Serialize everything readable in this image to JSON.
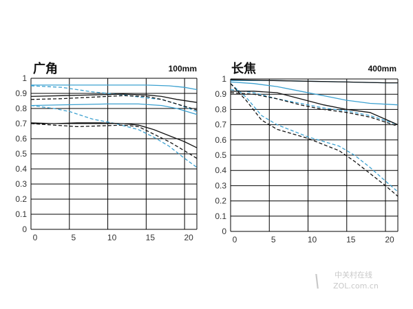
{
  "chart_data": [
    {
      "type": "line",
      "title": "广角",
      "subtitle": "100mm",
      "xlim": [
        0,
        21.6
      ],
      "ylim": [
        0,
        1
      ],
      "x_ticks": [
        "0",
        "5",
        "10",
        "15",
        "20"
      ],
      "y_ticks": [
        "0",
        "0.1",
        "0.2",
        "0.3",
        "0.4",
        "0.5",
        "0.6",
        "0.7",
        "0.8",
        "0.9",
        "1"
      ],
      "grid": true,
      "series": [
        {
          "color": "#3aa0d0",
          "dash": "solid",
          "x": [
            0,
            5,
            10,
            15,
            18,
            20,
            21.6
          ],
          "y": [
            0.955,
            0.955,
            0.955,
            0.955,
            0.95,
            0.94,
            0.925
          ]
        },
        {
          "color": "#3aa0d0",
          "dash": "dashed",
          "x": [
            0,
            4,
            8,
            12,
            15,
            17,
            19,
            21.6
          ],
          "y": [
            0.95,
            0.94,
            0.91,
            0.89,
            0.87,
            0.86,
            0.83,
            0.78
          ]
        },
        {
          "color": "#3aa0d0",
          "dash": "solid",
          "x": [
            0,
            5,
            10,
            14,
            17,
            19,
            21.6
          ],
          "y": [
            0.82,
            0.825,
            0.83,
            0.83,
            0.82,
            0.8,
            0.76
          ]
        },
        {
          "color": "#3aa0d0",
          "dash": "dashed",
          "x": [
            0,
            3,
            5,
            8,
            11,
            14,
            16,
            18,
            20,
            21.6
          ],
          "y": [
            0.82,
            0.8,
            0.78,
            0.73,
            0.7,
            0.66,
            0.61,
            0.55,
            0.47,
            0.41
          ]
        },
        {
          "color": "#111111",
          "dash": "solid",
          "x": [
            0,
            4,
            8,
            12,
            15,
            17,
            19,
            21.6
          ],
          "y": [
            0.88,
            0.885,
            0.89,
            0.895,
            0.89,
            0.88,
            0.86,
            0.84
          ]
        },
        {
          "color": "#111111",
          "dash": "dashed",
          "x": [
            0,
            4,
            8,
            12,
            15,
            17,
            19,
            21.6
          ],
          "y": [
            0.86,
            0.865,
            0.875,
            0.885,
            0.88,
            0.86,
            0.83,
            0.79
          ]
        },
        {
          "color": "#111111",
          "dash": "solid",
          "x": [
            0,
            3,
            6,
            9,
            12,
            14,
            16,
            18,
            20,
            21.6
          ],
          "y": [
            0.705,
            0.7,
            0.705,
            0.705,
            0.7,
            0.69,
            0.66,
            0.62,
            0.58,
            0.54
          ]
        },
        {
          "color": "#111111",
          "dash": "dashed",
          "x": [
            0,
            3,
            6,
            9,
            12,
            14,
            16,
            18,
            20,
            21.6
          ],
          "y": [
            0.7,
            0.69,
            0.68,
            0.685,
            0.69,
            0.68,
            0.63,
            0.58,
            0.52,
            0.47
          ]
        }
      ]
    },
    {
      "type": "line",
      "title": "长焦",
      "subtitle": "400mm",
      "xlim": [
        0,
        21.6
      ],
      "ylim": [
        0,
        1
      ],
      "x_ticks": [
        "0",
        "5",
        "10",
        "15",
        "20"
      ],
      "y_ticks": [
        "0",
        "0.1",
        "0.2",
        "0.3",
        "0.4",
        "0.5",
        "0.6",
        "0.7",
        "0.8",
        "0.9",
        "1"
      ],
      "grid": true,
      "series": [
        {
          "color": "#3aa0d0",
          "dash": "solid",
          "x": [
            0,
            5,
            10,
            15,
            20,
            21.6
          ],
          "y": [
            0.99,
            0.99,
            0.985,
            0.98,
            0.975,
            0.975
          ]
        },
        {
          "color": "#3aa0d0",
          "dash": "solid",
          "x": [
            0,
            3,
            6,
            9,
            12,
            15,
            18,
            21.6
          ],
          "y": [
            0.98,
            0.97,
            0.95,
            0.92,
            0.89,
            0.86,
            0.84,
            0.83
          ]
        },
        {
          "color": "#3aa0d0",
          "dash": "dashed",
          "x": [
            0,
            2,
            4,
            6,
            8,
            10,
            12,
            14,
            16,
            18,
            20,
            21.6
          ],
          "y": [
            0.97,
            0.88,
            0.76,
            0.7,
            0.66,
            0.62,
            0.59,
            0.56,
            0.5,
            0.42,
            0.33,
            0.26
          ]
        },
        {
          "color": "#3aa0d0",
          "dash": "dashed",
          "x": [
            0,
            3,
            6,
            9,
            12,
            15,
            18,
            21.6
          ],
          "y": [
            0.93,
            0.91,
            0.87,
            0.84,
            0.81,
            0.79,
            0.76,
            0.7
          ]
        },
        {
          "color": "#111111",
          "dash": "solid",
          "x": [
            0,
            5,
            10,
            15,
            20,
            21.6
          ],
          "y": [
            0.995,
            0.99,
            0.985,
            0.98,
            0.975,
            0.975
          ]
        },
        {
          "color": "#111111",
          "dash": "solid",
          "x": [
            0,
            3,
            6,
            9,
            12,
            15,
            18,
            21.6
          ],
          "y": [
            0.92,
            0.92,
            0.91,
            0.87,
            0.83,
            0.8,
            0.78,
            0.7
          ]
        },
        {
          "color": "#111111",
          "dash": "dashed",
          "x": [
            0,
            3,
            6,
            9,
            12,
            15,
            18,
            21.6
          ],
          "y": [
            0.91,
            0.9,
            0.87,
            0.83,
            0.8,
            0.78,
            0.75,
            0.69
          ]
        },
        {
          "color": "#111111",
          "dash": "dashed",
          "x": [
            0,
            2,
            4,
            6,
            8,
            10,
            12,
            14,
            16,
            18,
            20,
            21.6
          ],
          "y": [
            0.97,
            0.86,
            0.73,
            0.67,
            0.64,
            0.61,
            0.57,
            0.53,
            0.46,
            0.38,
            0.3,
            0.23
          ]
        }
      ]
    }
  ],
  "watermark": {
    "cn": "中关村在线",
    "en": "ZOL.com.cn"
  }
}
